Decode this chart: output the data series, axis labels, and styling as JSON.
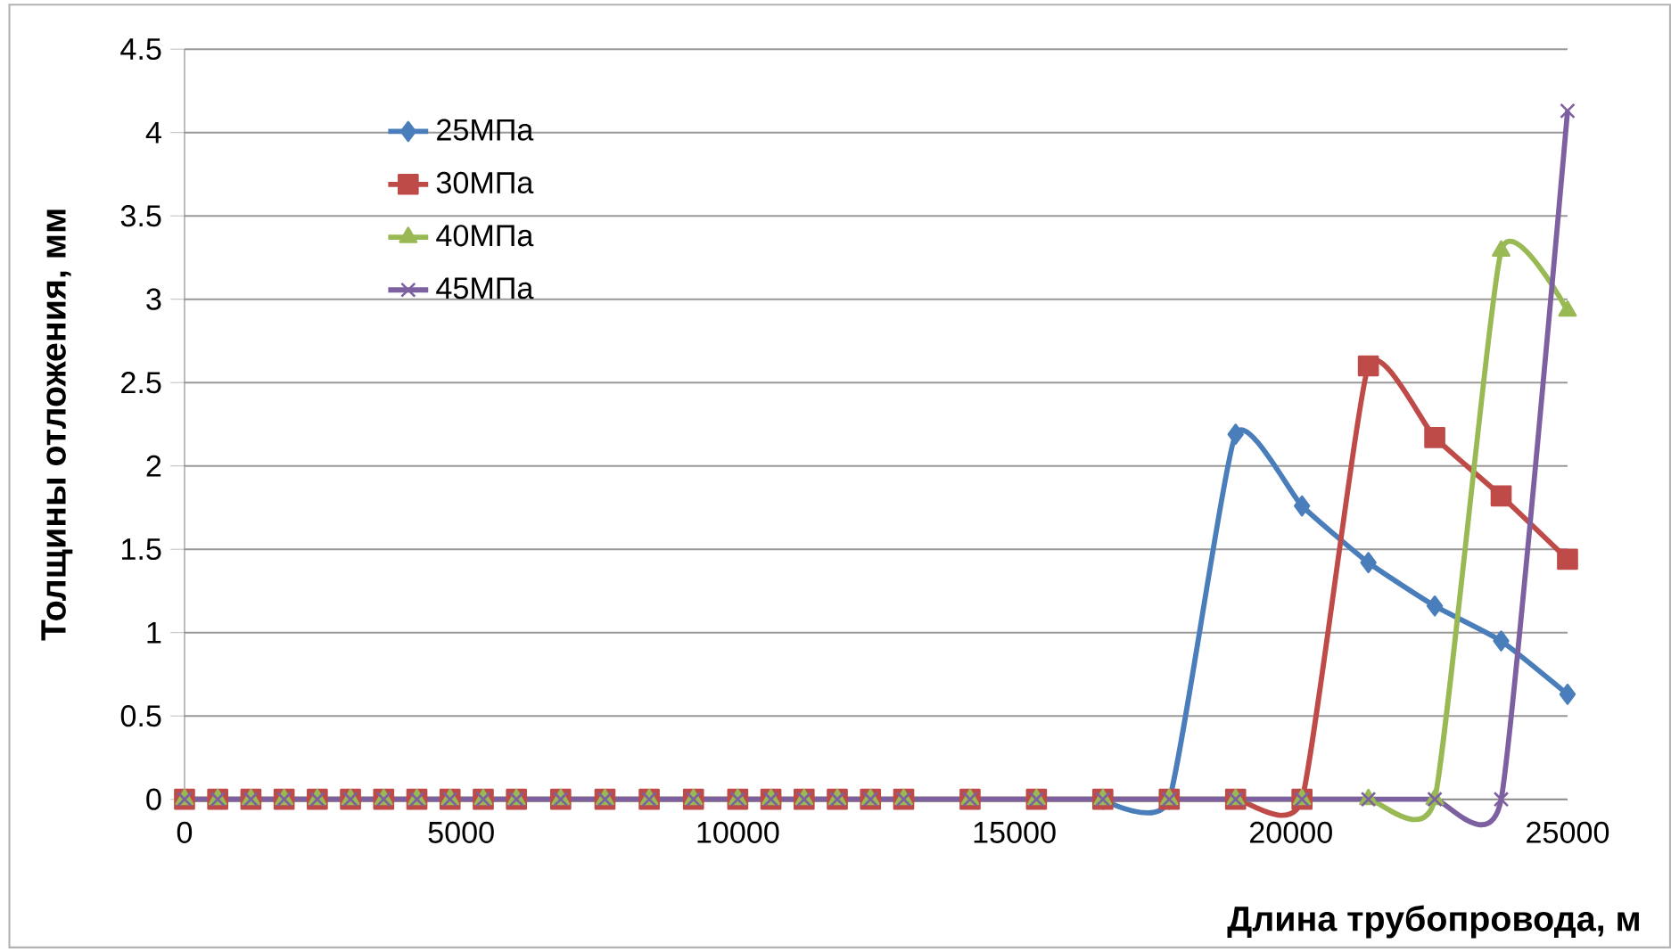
{
  "chart_data": {
    "type": "line",
    "xlabel": "Длина трубопровода, м",
    "ylabel": "Толщины отложения, мм",
    "x": [
      0,
      600,
      1200,
      1800,
      2400,
      3000,
      3600,
      4200,
      4800,
      5400,
      6000,
      6800,
      7600,
      8400,
      9200,
      10000,
      10600,
      11200,
      11800,
      12400,
      13000,
      14200,
      15400,
      16600,
      17800,
      19000,
      20200,
      21400,
      22600,
      23800,
      25000
    ],
    "xlim": [
      0,
      25000
    ],
    "xticks": [
      0,
      5000,
      10000,
      15000,
      20000,
      25000
    ],
    "ylim": [
      0,
      4.5
    ],
    "yticks": [
      0,
      0.5,
      1,
      1.5,
      2,
      2.5,
      3,
      3.5,
      4,
      4.5
    ],
    "grid": "y",
    "legend": "top left",
    "series": [
      {
        "name": "25МПа",
        "color": "#4a7ebb",
        "marker": "diamond",
        "values": [
          null,
          null,
          null,
          null,
          null,
          null,
          null,
          null,
          null,
          null,
          null,
          null,
          null,
          null,
          null,
          null,
          null,
          null,
          null,
          null,
          null,
          null,
          null,
          0,
          0,
          2.19,
          1.76,
          1.42,
          1.16,
          0.95,
          0.63
        ]
      },
      {
        "name": "30МПа",
        "color": "#be4b48",
        "marker": "square",
        "values": [
          0,
          0,
          0,
          0,
          0,
          0,
          0,
          0,
          0,
          0,
          0,
          0,
          0,
          0,
          0,
          0,
          0,
          0,
          0,
          0,
          0,
          0,
          0,
          0,
          0,
          0,
          0,
          2.6,
          2.17,
          1.82,
          1.44
        ]
      },
      {
        "name": "40МПа",
        "color": "#98b954",
        "marker": "triangle",
        "values": [
          0,
          0,
          0,
          0,
          0,
          0,
          0,
          0,
          0,
          0,
          0,
          0,
          0,
          0,
          0,
          0,
          0,
          0,
          0,
          0,
          0,
          0,
          0,
          0,
          0,
          0,
          0,
          0,
          0,
          3.29,
          2.93
        ]
      },
      {
        "name": "45МПа",
        "color": "#7d60a0",
        "marker": "cross",
        "values": [
          0,
          0,
          0,
          0,
          0,
          0,
          0,
          0,
          0,
          0,
          0,
          0,
          0,
          0,
          0,
          0,
          0,
          0,
          0,
          0,
          0,
          0,
          0,
          0,
          0,
          0,
          0,
          0,
          0,
          0,
          4.13
        ]
      }
    ]
  }
}
